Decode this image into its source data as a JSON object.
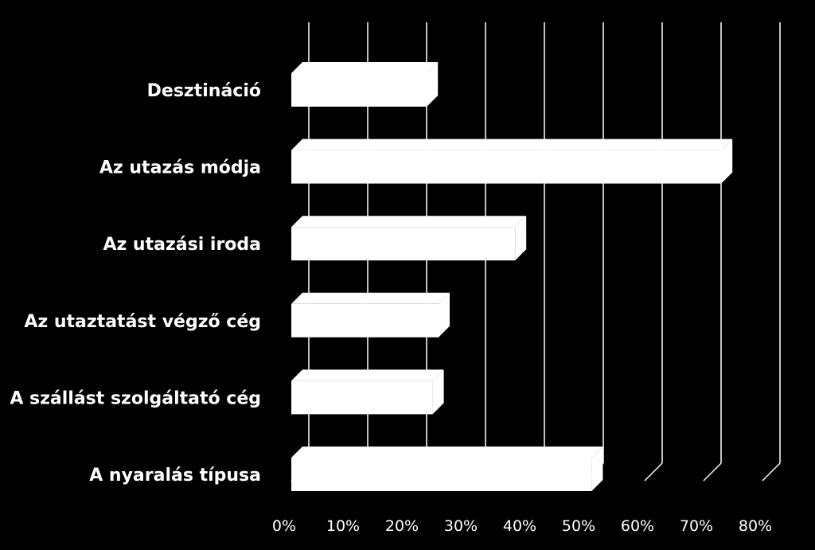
{
  "chart_data": {
    "type": "bar",
    "orientation": "horizontal",
    "style": "3d",
    "background": "#000000",
    "bar_color": "#FFFFFF",
    "grid_color": "#FFFFFF",
    "grid": true,
    "categories": [
      "Desztináció",
      "Az utazás módja",
      "Az utazási iroda",
      "Az utaztatást végző cég",
      "A szállást szolgáltató cég",
      "A nyaralás típusa"
    ],
    "values": [
      23,
      73,
      38,
      25,
      24,
      51
    ],
    "xlim": [
      0,
      80
    ],
    "x_ticks": [
      "0%",
      "10%",
      "20%",
      "30%",
      "40%",
      "50%",
      "60%",
      "70%",
      "80%"
    ],
    "title": "",
    "xlabel": "",
    "ylabel": ""
  }
}
